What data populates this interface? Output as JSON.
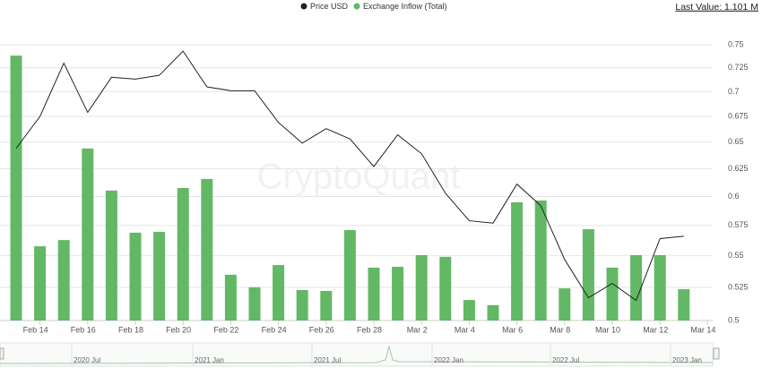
{
  "chart_data": {
    "type": "bar",
    "last_value_label": "Last Value: 1.101 M",
    "watermark": "CryptoQuant",
    "categories": [
      null,
      "Feb 14",
      null,
      "Feb 16",
      null,
      "Feb 18",
      null,
      "Feb 20",
      null,
      "Feb 22",
      null,
      "Feb 24",
      null,
      "Feb 26",
      null,
      "Feb 28",
      null,
      "Mar 2",
      null,
      "Mar 4",
      null,
      "Mar 6",
      null,
      "Mar 8",
      null,
      "Mar 10",
      null,
      "Mar 12",
      null,
      "Mar 14"
    ],
    "series": [
      {
        "name": "Price USD",
        "type": "line",
        "color": "#222222",
        "axis": "y2",
        "values": [
          0.644,
          0.675,
          0.73,
          0.679,
          0.715,
          0.713,
          0.717,
          0.743,
          0.705,
          0.701,
          0.701,
          0.669,
          0.649,
          0.663,
          0.653,
          0.627,
          0.657,
          0.639,
          0.603,
          0.579,
          0.577,
          0.611,
          0.592,
          0.547,
          0.517,
          0.528,
          0.515,
          0.564,
          0.566,
          null
        ]
      },
      {
        "name": "Exchange Inflow (Total)",
        "type": "bar",
        "color": "#62b865",
        "values": [
          9.32,
          2.61,
          2.83,
          6.05,
          4.57,
          3.09,
          3.12,
          4.66,
          4.98,
          1.61,
          1.17,
          1.95,
          1.07,
          1.04,
          3.18,
          1.86,
          1.89,
          2.3,
          2.24,
          0.72,
          0.54,
          4.16,
          4.22,
          1.13,
          3.21,
          1.86,
          2.3,
          2.3,
          1.1,
          null
        ]
      }
    ],
    "ylim": [
      0,
      9.7
    ],
    "y2lim": [
      0.5,
      0.75
    ],
    "y2ticks": [
      0.5,
      0.525,
      0.55,
      0.575,
      0.6,
      0.625,
      0.65,
      0.675,
      0.7,
      0.725,
      0.75
    ],
    "y2log": true,
    "grid": true,
    "navigator_labels": [
      "2020 Jul",
      "2021 Jan",
      "2021 Jul",
      "2022 Jan",
      "2022 Jul",
      "2023 Jan"
    ]
  }
}
